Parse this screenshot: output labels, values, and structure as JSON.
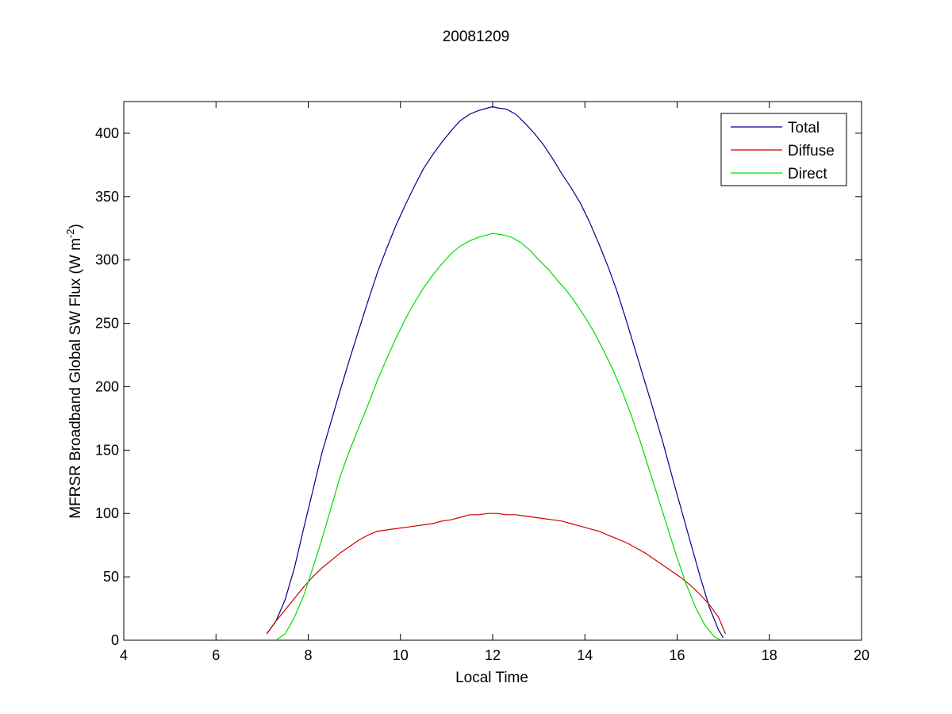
{
  "chart_data": {
    "type": "line",
    "title": "20081209",
    "xlabel": "Local Time",
    "ylabel": "MFRSR Broadband Global SW Flux (W m",
    "ylabel_superscript": "-2",
    "ylabel_suffix": ")",
    "xlim": [
      4,
      20
    ],
    "ylim": [
      0,
      425
    ],
    "xticks": [
      4,
      6,
      8,
      10,
      12,
      14,
      16,
      18,
      20
    ],
    "yticks": [
      0,
      50,
      100,
      150,
      200,
      250,
      300,
      350,
      400
    ],
    "grid": false,
    "legend_position": "top-right",
    "series": [
      {
        "name": "Total",
        "color": "#00008b",
        "points": [
          [
            7.1,
            5
          ],
          [
            7.3,
            15
          ],
          [
            7.5,
            32
          ],
          [
            7.7,
            57
          ],
          [
            7.9,
            88
          ],
          [
            8.1,
            118
          ],
          [
            8.3,
            148
          ],
          [
            8.5,
            173
          ],
          [
            8.7,
            198
          ],
          [
            8.9,
            222
          ],
          [
            9.1,
            245
          ],
          [
            9.3,
            268
          ],
          [
            9.5,
            290
          ],
          [
            9.7,
            309
          ],
          [
            9.9,
            327
          ],
          [
            10.1,
            343
          ],
          [
            10.3,
            358
          ],
          [
            10.5,
            372
          ],
          [
            10.7,
            383
          ],
          [
            10.9,
            393
          ],
          [
            11.1,
            402
          ],
          [
            11.3,
            410
          ],
          [
            11.5,
            415
          ],
          [
            11.7,
            418
          ],
          [
            11.9,
            420
          ],
          [
            12.0,
            421
          ],
          [
            12.1,
            420
          ],
          [
            12.3,
            419
          ],
          [
            12.5,
            415
          ],
          [
            12.7,
            408
          ],
          [
            12.9,
            400
          ],
          [
            13.1,
            391
          ],
          [
            13.3,
            380
          ],
          [
            13.5,
            368
          ],
          [
            13.7,
            357
          ],
          [
            13.9,
            345
          ],
          [
            14.1,
            330
          ],
          [
            14.3,
            313
          ],
          [
            14.5,
            295
          ],
          [
            14.7,
            275
          ],
          [
            14.9,
            252
          ],
          [
            15.1,
            228
          ],
          [
            15.3,
            204
          ],
          [
            15.5,
            180
          ],
          [
            15.7,
            155
          ],
          [
            15.9,
            128
          ],
          [
            16.1,
            102
          ],
          [
            16.3,
            76
          ],
          [
            16.5,
            50
          ],
          [
            16.7,
            26
          ],
          [
            16.9,
            8
          ],
          [
            17.0,
            2
          ]
        ]
      },
      {
        "name": "Diffuse",
        "color": "#cc0000",
        "points": [
          [
            7.1,
            5
          ],
          [
            7.3,
            15
          ],
          [
            7.5,
            24
          ],
          [
            7.7,
            33
          ],
          [
            7.9,
            42
          ],
          [
            8.1,
            50
          ],
          [
            8.3,
            57
          ],
          [
            8.5,
            63
          ],
          [
            8.7,
            69
          ],
          [
            8.9,
            74
          ],
          [
            9.1,
            79
          ],
          [
            9.3,
            83
          ],
          [
            9.5,
            86
          ],
          [
            9.7,
            87
          ],
          [
            9.9,
            88
          ],
          [
            10.1,
            89
          ],
          [
            10.3,
            90
          ],
          [
            10.5,
            91
          ],
          [
            10.7,
            92
          ],
          [
            10.9,
            94
          ],
          [
            11.1,
            95
          ],
          [
            11.3,
            97
          ],
          [
            11.5,
            99
          ],
          [
            11.7,
            99
          ],
          [
            11.9,
            100
          ],
          [
            12.1,
            100
          ],
          [
            12.3,
            99
          ],
          [
            12.5,
            99
          ],
          [
            12.7,
            98
          ],
          [
            12.9,
            97
          ],
          [
            13.1,
            96
          ],
          [
            13.3,
            95
          ],
          [
            13.5,
            94
          ],
          [
            13.7,
            92
          ],
          [
            13.9,
            90
          ],
          [
            14.1,
            88
          ],
          [
            14.3,
            86
          ],
          [
            14.5,
            83
          ],
          [
            14.7,
            80
          ],
          [
            14.9,
            77
          ],
          [
            15.1,
            73
          ],
          [
            15.3,
            69
          ],
          [
            15.5,
            64
          ],
          [
            15.7,
            59
          ],
          [
            15.9,
            54
          ],
          [
            16.1,
            49
          ],
          [
            16.3,
            43
          ],
          [
            16.5,
            36
          ],
          [
            16.7,
            28
          ],
          [
            16.9,
            18
          ],
          [
            17.05,
            5
          ]
        ]
      },
      {
        "name": "Direct",
        "color": "#00dd00",
        "points": [
          [
            7.3,
            0
          ],
          [
            7.5,
            5
          ],
          [
            7.7,
            18
          ],
          [
            7.9,
            35
          ],
          [
            8.1,
            57
          ],
          [
            8.3,
            80
          ],
          [
            8.5,
            105
          ],
          [
            8.7,
            130
          ],
          [
            8.9,
            150
          ],
          [
            9.1,
            168
          ],
          [
            9.3,
            186
          ],
          [
            9.5,
            205
          ],
          [
            9.7,
            222
          ],
          [
            9.9,
            238
          ],
          [
            10.1,
            253
          ],
          [
            10.3,
            266
          ],
          [
            10.5,
            278
          ],
          [
            10.7,
            288
          ],
          [
            10.9,
            297
          ],
          [
            11.1,
            305
          ],
          [
            11.3,
            311
          ],
          [
            11.5,
            315
          ],
          [
            11.7,
            318
          ],
          [
            11.9,
            320
          ],
          [
            12.0,
            321
          ],
          [
            12.2,
            320
          ],
          [
            12.4,
            318
          ],
          [
            12.6,
            314
          ],
          [
            12.8,
            308
          ],
          [
            13.0,
            300
          ],
          [
            13.2,
            293
          ],
          [
            13.4,
            284
          ],
          [
            13.6,
            276
          ],
          [
            13.8,
            266
          ],
          [
            14.0,
            255
          ],
          [
            14.2,
            243
          ],
          [
            14.4,
            229
          ],
          [
            14.6,
            214
          ],
          [
            14.8,
            197
          ],
          [
            15.0,
            178
          ],
          [
            15.2,
            157
          ],
          [
            15.4,
            134
          ],
          [
            15.6,
            111
          ],
          [
            15.8,
            88
          ],
          [
            16.0,
            65
          ],
          [
            16.2,
            44
          ],
          [
            16.4,
            26
          ],
          [
            16.6,
            12
          ],
          [
            16.8,
            3
          ],
          [
            16.95,
            0
          ]
        ]
      }
    ]
  }
}
